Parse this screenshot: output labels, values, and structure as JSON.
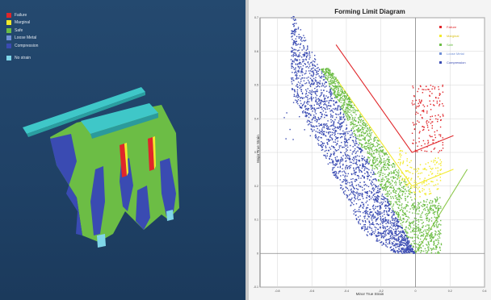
{
  "colors": {
    "failure": "#e0262a",
    "marginal": "#f2ea2b",
    "safe": "#6cbd45",
    "loose_metal": "#6f8fd6",
    "compression": "#3a4bb2",
    "no_strain": "#7fd6e8",
    "flc_red": "#e0262a",
    "flc_yellow": "#f2ea2b",
    "flc_green": "#8cc84a"
  },
  "viewport": {
    "legend": [
      {
        "label": "Failure",
        "color": "#e0262a"
      },
      {
        "label": "Marginal",
        "color": "#f2ea2b"
      },
      {
        "label": "Safe",
        "color": "#6cbd45"
      },
      {
        "label": "Loose Metal",
        "color": "#6f8fd6"
      },
      {
        "label": "Compression",
        "color": "#3a4bb2"
      },
      {
        "label": "No strain",
        "color": "#7fd6e8"
      }
    ]
  },
  "chart": {
    "title": "Forming Limit Diagram",
    "xlabel": "Minor True Strain",
    "ylabel": "Major True Strain",
    "legend": [
      {
        "label": "Failure",
        "color": "#e0262a"
      },
      {
        "label": "Marginal",
        "color": "#f2ea2b"
      },
      {
        "label": "Safe",
        "color": "#6cbd45"
      },
      {
        "label": "Loose Metal",
        "color": "#6f8fd6"
      },
      {
        "label": "Compression",
        "color": "#3a4bb2"
      }
    ]
  },
  "chart_data": {
    "type": "scatter",
    "title": "Forming Limit Diagram",
    "xlabel": "Minor True Strain",
    "ylabel": "Major True Strain",
    "xlim": [
      -0.9,
      0.4
    ],
    "ylim": [
      -0.1,
      0.7
    ],
    "x_ticks": [
      -0.8,
      -0.6,
      -0.4,
      -0.2,
      0,
      0.2,
      0.4
    ],
    "y_ticks": [
      -0.1,
      0,
      0.1,
      0.2,
      0.3,
      0.4,
      0.5,
      0.6,
      0.7
    ],
    "grid": true,
    "legend_position": "top-right",
    "limit_curves": [
      {
        "name": "Failure",
        "color": "#e0262a",
        "points": [
          [
            -0.46,
            0.62
          ],
          [
            -0.02,
            0.3
          ],
          [
            0.22,
            0.35
          ]
        ]
      },
      {
        "name": "Marginal",
        "color": "#f2ea2b",
        "points": [
          [
            -0.46,
            0.52
          ],
          [
            -0.02,
            0.2
          ],
          [
            0.22,
            0.25
          ]
        ]
      },
      {
        "name": "Safe",
        "color": "#8cc84a",
        "points": [
          [
            0.0,
            0.0
          ],
          [
            0.3,
            0.25
          ]
        ]
      }
    ],
    "series": [
      {
        "name": "Failure",
        "color": "#e0262a",
        "x_range": [
          -0.02,
          0.24
        ],
        "y_range": [
          0.25,
          0.5
        ]
      },
      {
        "name": "Marginal",
        "color": "#f2ea2b",
        "x_range": [
          -0.1,
          0.15
        ],
        "y_range": [
          0.2,
          0.35
        ]
      },
      {
        "name": "Safe",
        "color": "#6cbd45",
        "x_range": [
          -0.6,
          0.15
        ],
        "y_range": [
          0.0,
          0.55
        ]
      },
      {
        "name": "Compression",
        "color": "#3a4bb2",
        "x_range": [
          -0.76,
          0.0
        ],
        "y_range": [
          0.0,
          0.6
        ]
      }
    ]
  }
}
